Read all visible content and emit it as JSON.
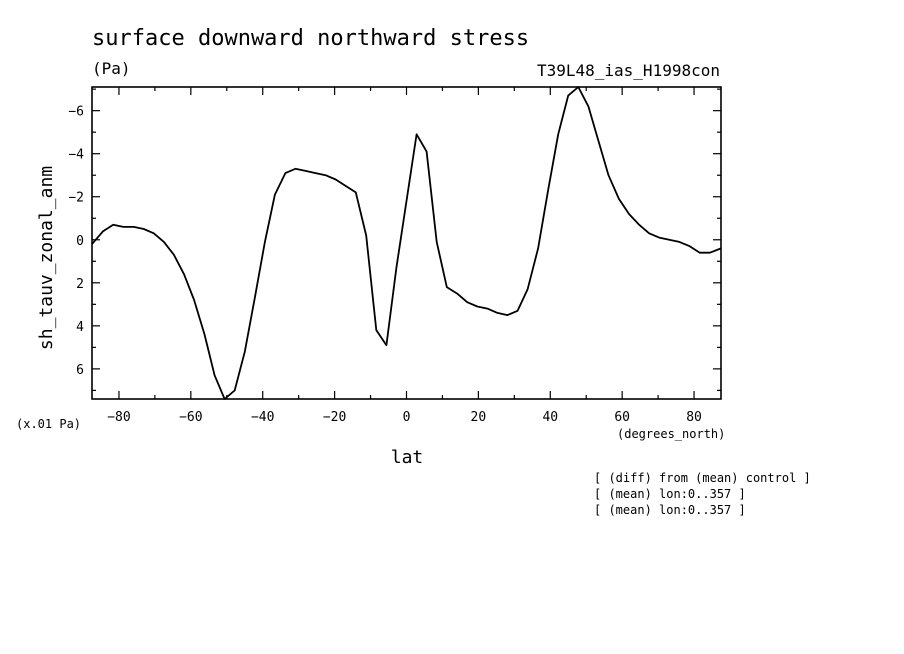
{
  "chart_data": {
    "type": "line",
    "title": "surface downward northward stress",
    "units": "(Pa)",
    "run_label": "T39L48_ias_H1998con",
    "xlabel": "lat",
    "xunits": "(degrees_north)",
    "ylabel": "sh_tauv_zonal_anm",
    "yscale_note": "(x.01 Pa)",
    "notes": [
      "[ (diff) from (mean) control ]",
      "[ (mean) lon:0..357 ]",
      "[ (mean) lon:0..357 ]"
    ],
    "xlim": [
      -87.5,
      87.5
    ],
    "ylim": [
      7.4,
      -7.1
    ],
    "y_inverted": true,
    "x_ticks": [
      -80,
      -60,
      -40,
      -20,
      0,
      20,
      40,
      60,
      80
    ],
    "x_tick_labels": [
      "−80",
      "−60",
      "−40",
      "−20",
      "0",
      "20",
      "40",
      "60",
      "80"
    ],
    "y_ticks": [
      -6,
      -4,
      -2,
      0,
      2,
      4,
      6
    ],
    "y_tick_labels": [
      "−6",
      "−4",
      "−2",
      "0",
      "2",
      "4",
      "6"
    ],
    "grid": false,
    "color": "#000000",
    "series": [
      {
        "x": [
          -87.5,
          -84.4,
          -81.6,
          -78.8,
          -75.9,
          -73.1,
          -70.3,
          -67.5,
          -64.7,
          -61.9,
          -59.1,
          -56.2,
          -53.4,
          -50.6,
          -47.8,
          -45.0,
          -42.2,
          -39.4,
          -36.6,
          -33.7,
          -30.9,
          -28.1,
          -25.3,
          -22.5,
          -19.7,
          -16.9,
          -14.1,
          -11.2,
          -8.4,
          -5.6,
          -2.8,
          0.0,
          2.8,
          5.6,
          8.4,
          11.2,
          14.1,
          16.9,
          19.7,
          22.5,
          25.3,
          28.1,
          30.9,
          33.7,
          36.6,
          39.4,
          42.2,
          45.0,
          47.8,
          50.6,
          53.4,
          56.2,
          59.1,
          61.9,
          64.7,
          67.5,
          70.3,
          73.1,
          75.9,
          78.8,
          81.6,
          84.4,
          87.5
        ],
        "y": [
          0.2,
          -0.4,
          -0.7,
          -0.6,
          -0.6,
          -0.5,
          -0.3,
          0.1,
          0.7,
          1.6,
          2.8,
          4.4,
          6.3,
          7.4,
          7.0,
          5.2,
          2.7,
          0.1,
          -2.1,
          -3.1,
          -3.3,
          -3.2,
          -3.1,
          -3.0,
          -2.8,
          -2.5,
          -2.2,
          -0.2,
          4.2,
          4.9,
          1.3,
          -1.8,
          -4.9,
          -4.1,
          0.1,
          2.2,
          2.5,
          2.9,
          3.1,
          3.2,
          3.4,
          3.5,
          3.3,
          2.3,
          0.4,
          -2.3,
          -4.9,
          -6.7,
          -7.1,
          -6.2,
          -4.6,
          -3.0,
          -1.9,
          -1.2,
          -0.7,
          -0.3,
          -0.1,
          0.0,
          0.1,
          0.3,
          0.6,
          0.6,
          0.4
        ]
      }
    ]
  }
}
